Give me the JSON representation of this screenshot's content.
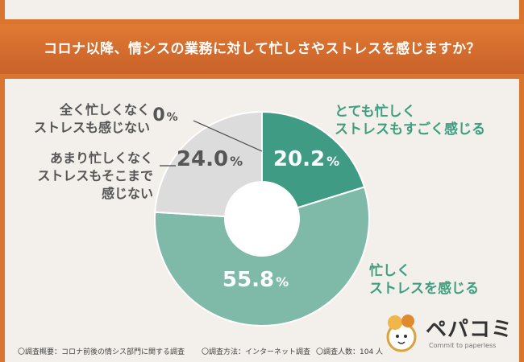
{
  "title": "コロナ以降、情シスの業務に対して忙しさやストレスを感じますか？",
  "colors": {
    "band": "#d9752f",
    "slice_dark_green": "#3f9b83",
    "slice_light_green": "#7fbaa9",
    "slice_gray": "#dcdcdc",
    "background": "#f3efeb"
  },
  "chart_data": {
    "type": "pie",
    "title": "コロナ以降、情シスの業務に対して忙しさやストレスを感じますか？",
    "slices": [
      {
        "label": "とても忙しく ストレスもすごく感じる",
        "value": 20.2,
        "display_value": "20.2",
        "color": "#3f9b83"
      },
      {
        "label": "忙しく ストレスを感じる",
        "value": 55.8,
        "display_value": "55.8",
        "color": "#7fbaa9"
      },
      {
        "label": "あまり忙しくなく ストレスもそこまで 感じない",
        "value": 24.0,
        "display_value": "24.0",
        "color": "#dcdcdc"
      },
      {
        "label": "全く忙しくなく ストレスも感じない",
        "value": 0,
        "display_value": "0",
        "color": "#dcdcdc"
      }
    ],
    "unit": "%"
  },
  "labels": {
    "very_busy": [
      "とても忙しく",
      "ストレスもすごく感じる"
    ],
    "busy": [
      "忙しく",
      "ストレスを感じる"
    ],
    "not_very_busy": [
      "あまり忙しくなく",
      "ストレスもそこまで",
      "感じない"
    ],
    "not_busy": [
      "全く忙しくなく",
      "ストレスも感じない"
    ]
  },
  "footer": {
    "overview": "〇調査概要：コロナ前後の情シス部門に関する調査",
    "method": "〇調査方法：インターネット調査",
    "respondents": "〇調査人数：104 人"
  },
  "logo": {
    "name": "ペパコミ",
    "tagline": "Commit to paperless"
  }
}
